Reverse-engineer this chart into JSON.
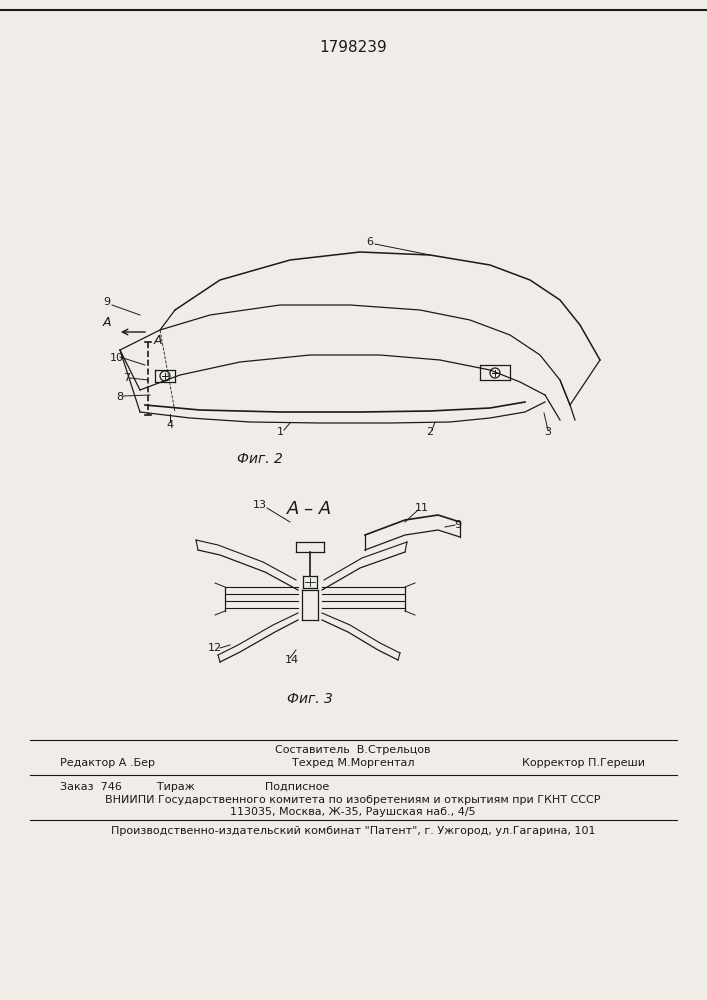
{
  "patent_number": "1798239",
  "fig2_label": "Фиг. 2",
  "fig3_label": "Фиг. 3",
  "section_label": "А – А",
  "bg_color": "#f0ede8",
  "line_color": "#1a1a1a",
  "footer_line2": "Заказ  746          Тираж                    Подписное",
  "footer_line3": "ВНИИПИ Государственного комитета по изобретениям и открытиям при ГКНТ СССР",
  "footer_line4": "113035, Москва, Ж-35, Раушская наб., 4/5",
  "footer_line5": "Производственно-издательский комбинат \"Патент\", г. Ужгород, ул.Гагарина, 101"
}
